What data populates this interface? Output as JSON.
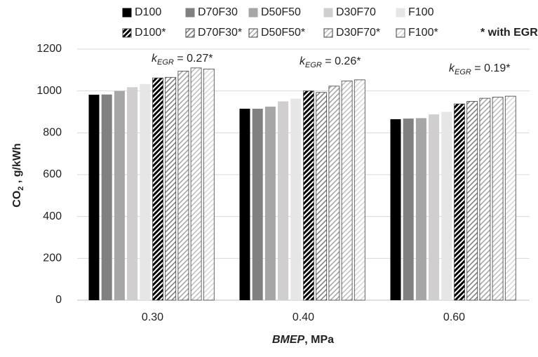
{
  "chart_data": {
    "type": "bar",
    "categories": [
      "0.30",
      "0.40",
      "0.60"
    ],
    "series": [
      {
        "name": "D100",
        "color": "#000000",
        "hatch": false,
        "values": [
          982,
          915,
          865
        ]
      },
      {
        "name": "D70F30",
        "color": "#808080",
        "hatch": false,
        "values": [
          983,
          915,
          868
        ]
      },
      {
        "name": "D50F50",
        "color": "#a6a6a6",
        "hatch": false,
        "values": [
          1000,
          925,
          870
        ]
      },
      {
        "name": "D30F70",
        "color": "#d0cece",
        "hatch": false,
        "values": [
          1018,
          950,
          888
        ]
      },
      {
        "name": "F100",
        "color": "#e7e6e6",
        "hatch": false,
        "values": [
          1033,
          963,
          900
        ]
      },
      {
        "name": "D100*",
        "color": "#000000",
        "hatch": true,
        "values": [
          1062,
          1000,
          938
        ]
      },
      {
        "name": "D70F30*",
        "color": "#808080",
        "hatch": true,
        "values": [
          1065,
          993,
          950
        ]
      },
      {
        "name": "D50F50*",
        "color": "#a6a6a6",
        "hatch": true,
        "values": [
          1095,
          1023,
          965
        ]
      },
      {
        "name": "D30F70*",
        "color": "#bfbfbf",
        "hatch": true,
        "values": [
          1110,
          1048,
          970
        ]
      },
      {
        "name": "F100*",
        "color": "#d9d9d9",
        "hatch": true,
        "values": [
          1105,
          1053,
          975
        ]
      }
    ],
    "legend_note": "* with EGR",
    "x_label": {
      "italic": "BMEP",
      "rest": ", MPa"
    },
    "y_label": {
      "main": "CO",
      "sub": "2",
      "rest": " , g/kWh"
    },
    "annotations": [
      {
        "symbol": "k",
        "sub": "EGR",
        "text": " = 0.27*"
      },
      {
        "symbol": "k",
        "sub": "EGR",
        "text": " = 0.26*"
      },
      {
        "symbol": "k",
        "sub": "EGR",
        "text": " = 0.19*"
      }
    ],
    "ylim": [
      0,
      1200
    ],
    "yticks": [
      0,
      200,
      400,
      600,
      800,
      1000,
      1200
    ],
    "grid": true
  }
}
